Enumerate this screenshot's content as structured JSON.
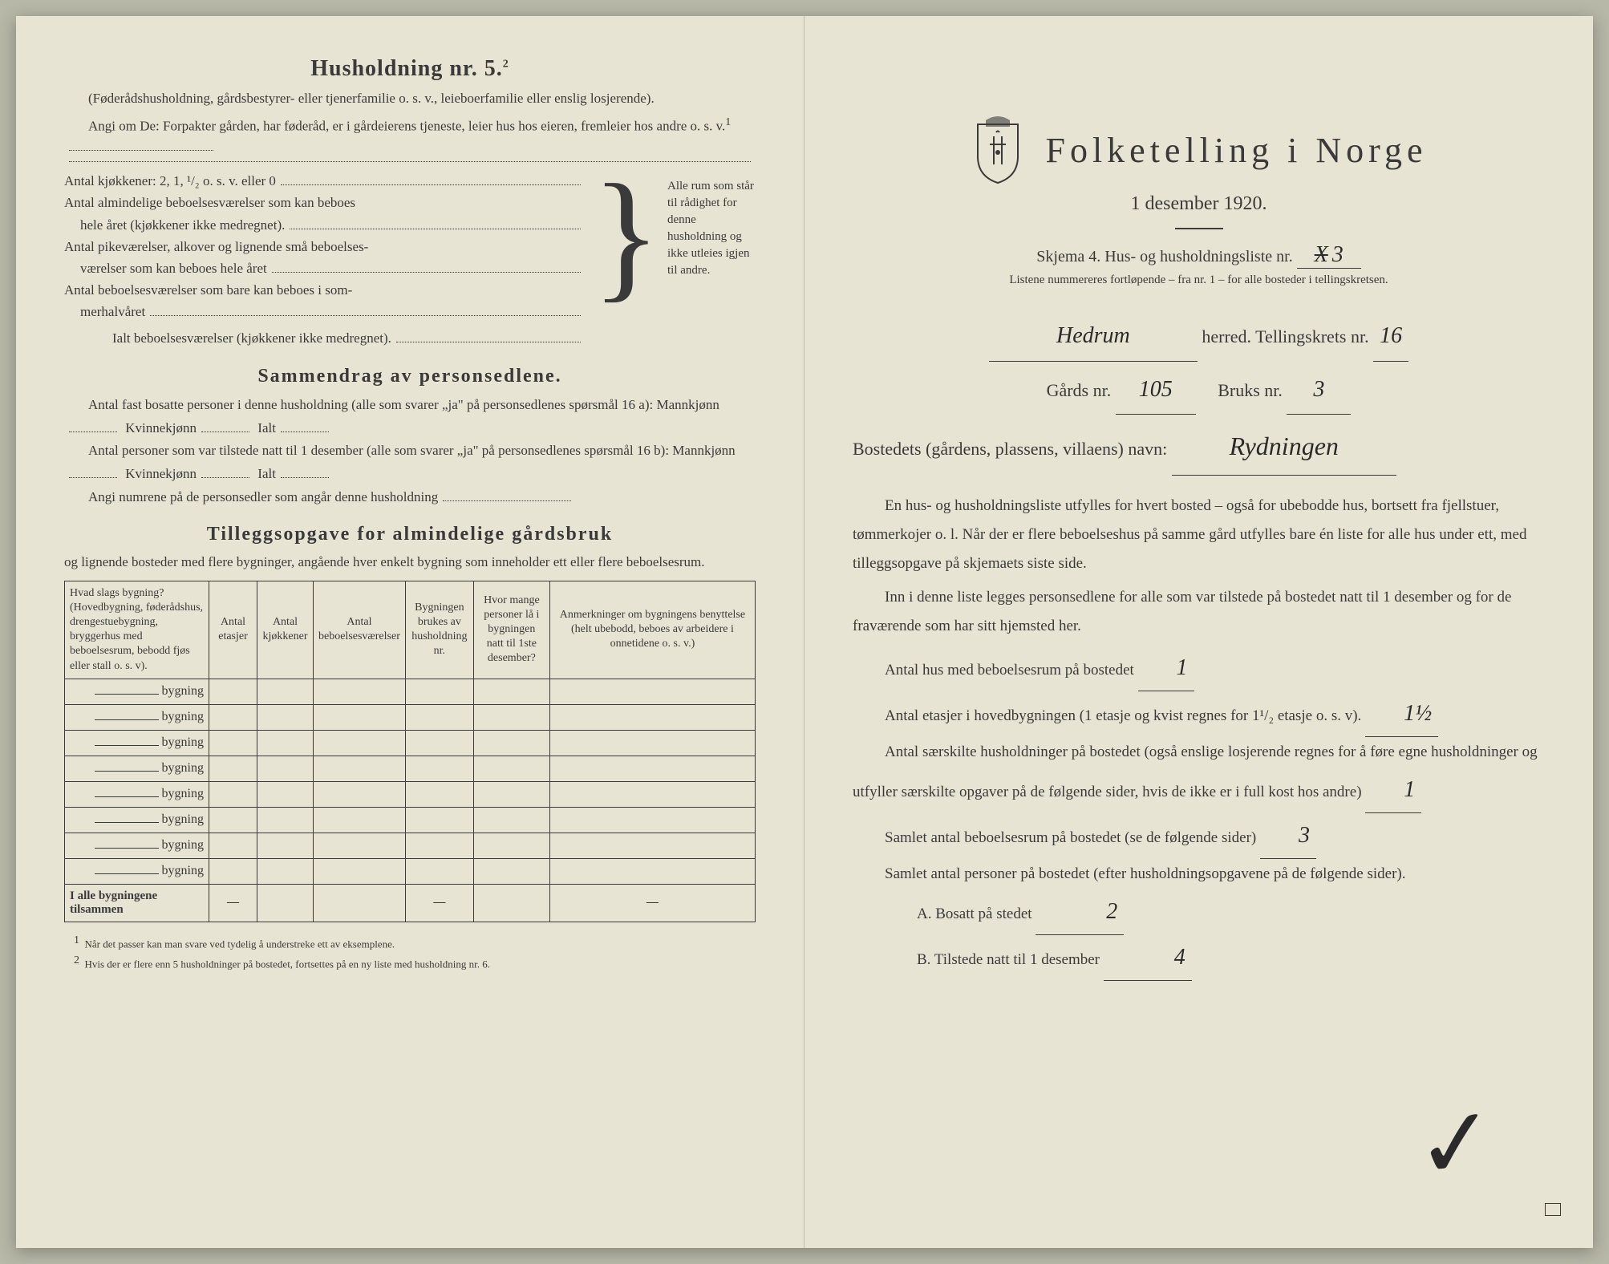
{
  "left": {
    "heading": "Husholdning nr. 5.",
    "heading_sup": "2",
    "intro1": "(Føderådshusholdning, gårdsbestyrer- eller tjenerfamilie o. s. v., leieboerfamilie eller enslig losjerende).",
    "intro2": "Angi om De: Forpakter gården, har føderåd, er i gårdeierens tjeneste, leier hus hos eieren, fremleier hos andre o. s. v.",
    "intro2_sup": "1",
    "bracket": {
      "line1": "Antal kjøkkener: 2, 1, ¹/₂ o. s. v. eller 0",
      "line2a": "Antal almindelige beboelsesværelser som kan beboes",
      "line2b": "hele året (kjøkkener ikke medregnet).",
      "line3a": "Antal pikeværelser, alkover og lignende små beboelses-",
      "line3b": "værelser som kan beboes hele året",
      "line4a": "Antal beboelsesværelser som bare kan beboes i som-",
      "line4b": "merhalvåret",
      "line5": "Ialt beboelsesværelser (kjøkkener ikke medregnet).",
      "note": "Alle rum som står til rådighet for denne husholdning og ikke utleies igjen til andre."
    },
    "sammendrag": {
      "heading": "Sammendrag av personsedlene.",
      "p1a": "Antal fast bosatte personer i denne husholdning (alle som svarer „ja\" på personsedlenes spørsmål 16 a): Mannkjønn",
      "p1b": "Kvinnekjønn",
      "p1c": "Ialt",
      "p2a": "Antal personer som var tilstede natt til 1 desember (alle som svarer „ja\" på personsedlenes spørsmål 16 b): Mannkjønn",
      "p3": "Angi numrene på de personsedler som angår denne husholdning"
    },
    "tillegg": {
      "heading": "Tilleggsopgave for almindelige gårdsbruk",
      "intro": "og lignende bosteder med flere bygninger, angående hver enkelt bygning som inneholder ett eller flere beboelsesrum."
    },
    "table": {
      "headers": [
        "Hvad slags bygning?\n(Hovedbygning, føderådshus, drengestuebygning, bryggerhus med beboelsesrum, bebodd fjøs eller stall o. s. v).",
        "Antal etasjer",
        "Antal kjøkkener",
        "Antal beboelsesværelser",
        "Bygningen brukes av husholdning nr.",
        "Hvor mange personer lå i bygningen natt til 1ste desember?",
        "Anmerkninger om bygningens benyttelse (helt ubebodd, beboes av arbeidere i onnetidene o. s. v.)"
      ],
      "row_label": "bygning",
      "row_count": 8,
      "totals_label": "I alle bygningene tilsammen",
      "dash": "—"
    },
    "footnotes": {
      "f1": "Når det passer kan man svare ved tydelig å understreke ett av eksemplene.",
      "f2": "Hvis der er flere enn 5 husholdninger på bostedet, fortsettes på en ny liste med husholdning nr. 6."
    }
  },
  "right": {
    "title": "Folketelling i Norge",
    "subtitle": "1 desember 1920.",
    "skjema": "Skjema 4.  Hus- og husholdningsliste nr.",
    "skjema_nr_struck": "X",
    "skjema_nr": "3",
    "listnote": "Listene nummereres fortløpende – fra nr. 1 – for alle bosteder i tellingskretsen.",
    "herred_name": "Hedrum",
    "herred_label": "herred.   Tellingskrets nr.",
    "krets_nr": "16",
    "gards_label": "Gårds nr.",
    "gards_nr": "105",
    "bruks_label": "Bruks nr.",
    "bruks_nr": "3",
    "bosted_label": "Bostedets (gårdens, plassens, villaens) navn:",
    "bosted_name": "Rydningen",
    "body1": "En hus- og husholdningsliste utfylles for hvert bosted – også for ubebodde hus, bortsett fra fjellstuer, tømmerkojer o. l. Når der er flere beboelseshus på samme gård utfylles bare én liste for alle hus under ett, med tilleggsopgave på skjemaets siste side.",
    "body2": "Inn i denne liste legges personsedlene for alle som var tilstede på bostedet natt til 1 desember og for de fraværende som har sitt hjemsted her.",
    "q1_label": "Antal hus med beboelsesrum på bostedet",
    "q1_val": "1",
    "q2_label": "Antal etasjer i hovedbygningen (1 etasje og kvist regnes for 1¹/₂ etasje o. s. v).",
    "q2_val": "1½",
    "q3_label": "Antal særskilte husholdninger på bostedet (også enslige losjerende regnes for å føre egne husholdninger og utfyller særskilte opgaver på de følgende sider, hvis de ikke er i full kost hos andre)",
    "q3_val": "1",
    "q4_label": "Samlet antal beboelsesrum på bostedet (se de følgende sider)",
    "q4_val": "3",
    "q5_label": "Samlet antal personer på bostedet (efter husholdningsopgavene på de følgende sider).",
    "q5a_label": "A.  Bosatt på stedet",
    "q5a_val": "2",
    "q5b_label": "B.  Tilstede natt til 1 desember",
    "q5b_val": "4"
  }
}
